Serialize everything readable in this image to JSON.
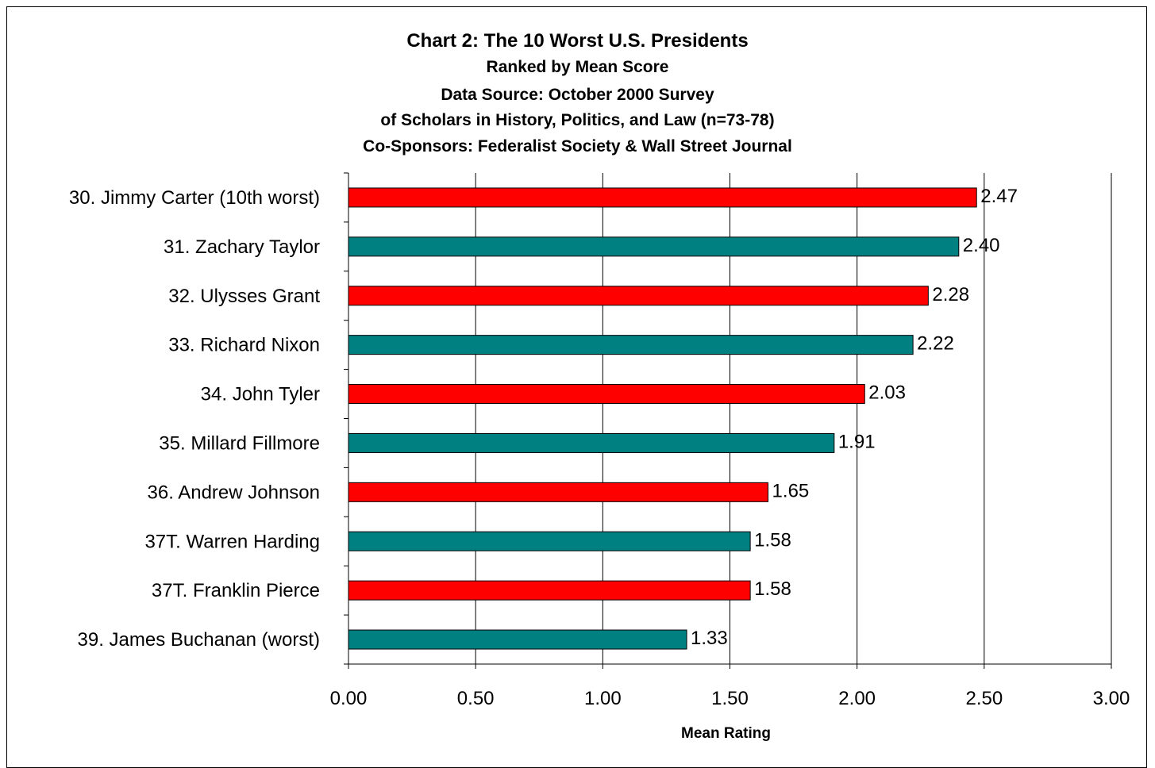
{
  "chart_data": {
    "type": "bar",
    "orientation": "horizontal",
    "title": "Chart 2: The 10 Worst U.S. Presidents",
    "subtitles": [
      "Ranked by Mean Score",
      "Data Source: October 2000 Survey",
      "of Scholars in History, Politics, and Law (n=73-78)",
      "Co-Sponsors: Federalist Society & Wall Street Journal"
    ],
    "categories": [
      "30. Jimmy Carter (10th worst)",
      "31. Zachary Taylor",
      "32. Ulysses Grant",
      "33. Richard Nixon",
      "34. John Tyler",
      "35. Millard Fillmore",
      "36. Andrew Johnson",
      "37T. Warren Harding",
      "37T. Franklin Pierce",
      "39. James Buchanan (worst)"
    ],
    "values": [
      2.47,
      2.4,
      2.28,
      2.22,
      2.03,
      1.91,
      1.65,
      1.58,
      1.58,
      1.33
    ],
    "value_labels": [
      "2.47",
      "2.40",
      "2.28",
      "2.22",
      "2.03",
      "1.91",
      "1.65",
      "1.58",
      "1.58",
      "1.33"
    ],
    "bar_colors": [
      "#ff0000",
      "#008080",
      "#ff0000",
      "#008080",
      "#ff0000",
      "#008080",
      "#ff0000",
      "#008080",
      "#ff0000",
      "#008080"
    ],
    "xlabel": "Mean Rating",
    "ylabel": "",
    "xlim": [
      0,
      3
    ],
    "xticks": [
      "0.00",
      "0.50",
      "1.00",
      "1.50",
      "2.00",
      "2.50",
      "3.00"
    ],
    "grid": "vertical",
    "legend": "none"
  }
}
